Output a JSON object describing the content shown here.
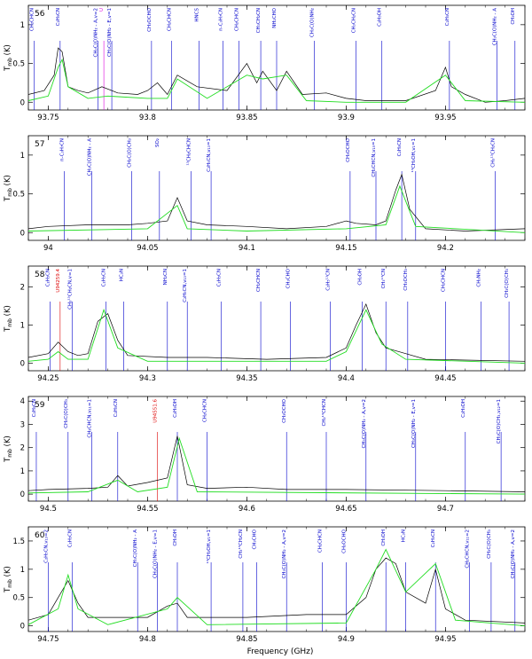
{
  "figure": {
    "xlabel": "Frequency (GHz)",
    "ylabel": "T",
    "ylabel_sub": "mb",
    "ylabel_unit": "(K)"
  },
  "colors": {
    "observed": "#000000",
    "model": "#22dd22",
    "line_label": "#0000cc",
    "unidentified_label": "#dd0000",
    "highlight_label": "#dd00dd"
  },
  "chart_data": [
    {
      "type": "line",
      "panel": "56",
      "xlabel": "Frequency (GHz)",
      "ylabel": "Tmb (K)",
      "xlim": [
        93.74,
        93.99
      ],
      "ylim": [
        -0.1,
        1.25
      ],
      "xticks": [
        93.75,
        93.8,
        93.85,
        93.9,
        93.95
      ],
      "yticks": [
        0,
        0.5,
        1
      ],
      "series": [
        {
          "style": "observed",
          "x": [
            93.74,
            93.748,
            93.753,
            93.755,
            93.757,
            93.76,
            93.765,
            93.77,
            93.777,
            93.785,
            93.795,
            93.8,
            93.805,
            93.81,
            93.815,
            93.825,
            93.84,
            93.85,
            93.855,
            93.858,
            93.865,
            93.87,
            93.878,
            93.89,
            93.9,
            93.91,
            93.93,
            93.945,
            93.95,
            93.953,
            93.96,
            93.97,
            93.98,
            93.99
          ],
          "y": [
            0.1,
            0.15,
            0.35,
            0.7,
            0.65,
            0.2,
            0.15,
            0.12,
            0.2,
            0.12,
            0.1,
            0.15,
            0.25,
            0.1,
            0.35,
            0.2,
            0.15,
            0.5,
            0.25,
            0.4,
            0.15,
            0.4,
            0.1,
            0.12,
            0.05,
            0.02,
            0.02,
            0.15,
            0.45,
            0.2,
            0.1,
            0.0,
            0.02,
            0.05
          ]
        },
        {
          "style": "model",
          "x": [
            93.74,
            93.75,
            93.755,
            93.757,
            93.76,
            93.77,
            93.78,
            93.8,
            93.81,
            93.815,
            93.83,
            93.85,
            93.858,
            93.87,
            93.88,
            93.9,
            93.93,
            93.95,
            93.96,
            93.99
          ],
          "y": [
            0.02,
            0.08,
            0.45,
            0.55,
            0.2,
            0.05,
            0.08,
            0.05,
            0.05,
            0.3,
            0.05,
            0.35,
            0.3,
            0.35,
            0.02,
            0.0,
            0.0,
            0.35,
            0.02,
            0.0
          ]
        }
      ],
      "line_labels": [
        {
          "x": 93.743,
          "text": "CH₂CHCN",
          "color": "blue"
        },
        {
          "x": 93.756,
          "text": "C₂H₅CN",
          "color": "blue"
        },
        {
          "x": 93.775,
          "text": "CH₃C(O)NH₂ - A,v=2",
          "color": "blue"
        },
        {
          "x": 93.778,
          "text": "U",
          "color": "magenta"
        },
        {
          "x": 93.782,
          "text": "CH₃C(O)NH₂ - E,v=1",
          "color": "blue"
        },
        {
          "x": 93.802,
          "text": "CH₃OCHO",
          "color": "blue"
        },
        {
          "x": 93.812,
          "text": "CH₂CHCN",
          "color": "blue"
        },
        {
          "x": 93.826,
          "text": "HNCS",
          "color": "blue"
        },
        {
          "x": 93.838,
          "text": "n-C₃H₇CN",
          "color": "blue"
        },
        {
          "x": 93.846,
          "text": "CH₂CHCN",
          "color": "blue"
        },
        {
          "x": 93.857,
          "text": "CH₃CH₂CN",
          "color": "blue"
        },
        {
          "x": 93.865,
          "text": "NH₂CHO",
          "color": "blue"
        },
        {
          "x": 93.884,
          "text": "CH₃C(O)NH₂",
          "color": "blue"
        },
        {
          "x": 93.905,
          "text": "CH₃CH₂CN",
          "color": "blue"
        },
        {
          "x": 93.918,
          "text": "C₂H₅OH",
          "color": "blue"
        },
        {
          "x": 93.952,
          "text": "C₂H₅CN",
          "color": "blue"
        },
        {
          "x": 93.976,
          "text": "CH₃C(O)NH₂ - A",
          "color": "blue"
        },
        {
          "x": 93.985,
          "text": "CH₃OH",
          "color": "blue"
        }
      ]
    },
    {
      "type": "line",
      "panel": "57",
      "xlabel": "Frequency (GHz)",
      "ylabel": "Tmb (K)",
      "xlim": [
        93.99,
        94.24
      ],
      "ylim": [
        -0.1,
        1.25
      ],
      "xticks": [
        94,
        94.05,
        94.1,
        94.15,
        94.2
      ],
      "yticks": [
        0,
        0.5,
        1
      ],
      "series": [
        {
          "style": "observed",
          "x": [
            93.99,
            94.0,
            94.02,
            94.04,
            94.05,
            94.06,
            94.065,
            94.07,
            94.08,
            94.1,
            94.12,
            94.14,
            94.15,
            94.155,
            94.165,
            94.17,
            94.175,
            94.178,
            94.182,
            94.19,
            94.21,
            94.24
          ],
          "y": [
            0.05,
            0.08,
            0.1,
            0.1,
            0.12,
            0.15,
            0.45,
            0.15,
            0.1,
            0.08,
            0.05,
            0.08,
            0.15,
            0.12,
            0.1,
            0.15,
            0.55,
            0.75,
            0.3,
            0.05,
            0.02,
            0.05
          ]
        },
        {
          "style": "model",
          "x": [
            93.99,
            94.05,
            94.065,
            94.07,
            94.1,
            94.15,
            94.17,
            94.177,
            94.185,
            94.24
          ],
          "y": [
            0.02,
            0.05,
            0.35,
            0.05,
            0.02,
            0.05,
            0.1,
            0.6,
            0.08,
            0.0
          ]
        }
      ],
      "line_labels": [
        {
          "x": 94.008,
          "text": "n-C₃H₇CN",
          "color": "blue"
        },
        {
          "x": 94.022,
          "text": "CH₃C(O)NH₂ - A",
          "color": "blue"
        },
        {
          "x": 94.042,
          "text": "CH₃C(O)CH₃",
          "color": "blue"
        },
        {
          "x": 94.056,
          "text": "SO₂",
          "color": "blue"
        },
        {
          "x": 94.072,
          "text": "¹³CH₂CHCN",
          "color": "blue"
        },
        {
          "x": 94.082,
          "text": "C₂H₅CN,v₁₃=1",
          "color": "blue"
        },
        {
          "x": 94.152,
          "text": "CH₃OCHO",
          "color": "blue"
        },
        {
          "x": 94.165,
          "text": "CH₂CHCN,v₁₅=1",
          "color": "blue"
        },
        {
          "x": 94.178,
          "text": "C₂H₅CN",
          "color": "blue"
        },
        {
          "x": 94.185,
          "text": "¹³CH₃OH,v₁=1",
          "color": "blue"
        },
        {
          "x": 94.225,
          "text": "CH₃¹³CH₂CN",
          "color": "blue"
        }
      ]
    },
    {
      "type": "line",
      "panel": "58",
      "xlabel": "Frequency (GHz)",
      "ylabel": "Tmb (K)",
      "xlim": [
        94.24,
        94.49
      ],
      "ylim": [
        -0.2,
        2.55
      ],
      "xticks": [
        94.25,
        94.3,
        94.35,
        94.4,
        94.45
      ],
      "yticks": [
        0,
        1,
        2
      ],
      "series": [
        {
          "style": "observed",
          "x": [
            94.24,
            94.25,
            94.255,
            94.26,
            94.265,
            94.27,
            94.275,
            94.28,
            94.285,
            94.29,
            94.31,
            94.33,
            94.36,
            94.39,
            94.4,
            94.405,
            94.41,
            94.415,
            94.42,
            94.43,
            94.44,
            94.46,
            94.49
          ],
          "y": [
            0.15,
            0.25,
            0.55,
            0.3,
            0.2,
            0.25,
            1.1,
            1.3,
            0.6,
            0.2,
            0.15,
            0.15,
            0.1,
            0.15,
            0.4,
            1.0,
            1.55,
            0.8,
            0.4,
            0.25,
            0.1,
            0.08,
            0.05
          ]
        },
        {
          "style": "model",
          "x": [
            94.24,
            94.25,
            94.255,
            94.26,
            94.27,
            94.278,
            94.285,
            94.3,
            94.39,
            94.4,
            94.41,
            94.418,
            94.43,
            94.49
          ],
          "y": [
            0.05,
            0.1,
            0.3,
            0.1,
            0.1,
            1.4,
            0.4,
            0.05,
            0.05,
            0.3,
            1.4,
            0.5,
            0.1,
            0.0
          ]
        }
      ],
      "line_labels": [
        {
          "x": 94.251,
          "text": "C₂H₅CN",
          "color": "blue"
        },
        {
          "x": 94.256,
          "text": "U94259.4",
          "color": "red"
        },
        {
          "x": 94.262,
          "text": "CH₃¹³CH₂CN,v=1",
          "color": "blue"
        },
        {
          "x": 94.279,
          "text": "C₂H₅CN",
          "color": "blue"
        },
        {
          "x": 94.288,
          "text": "HC₃N",
          "color": "blue"
        },
        {
          "x": 94.31,
          "text": "NH₂CN",
          "color": "blue"
        },
        {
          "x": 94.32,
          "text": "C₂H₅CN,v₁₃=1",
          "color": "blue"
        },
        {
          "x": 94.337,
          "text": "C₂H₅CN",
          "color": "blue"
        },
        {
          "x": 94.357,
          "text": "CH₂CHCN",
          "color": "blue"
        },
        {
          "x": 94.372,
          "text": "CH₃CHO",
          "color": "blue"
        },
        {
          "x": 94.392,
          "text": "C₂H₅¹³CN",
          "color": "blue"
        },
        {
          "x": 94.408,
          "text": "CH₃OH",
          "color": "blue"
        },
        {
          "x": 94.42,
          "text": "CH₃¹³CN",
          "color": "blue"
        },
        {
          "x": 94.431,
          "text": "CH₃OCH₃",
          "color": "blue"
        },
        {
          "x": 94.45,
          "text": "CH₂CHCN",
          "color": "blue"
        },
        {
          "x": 94.468,
          "text": "CH₃NH₂",
          "color": "blue"
        },
        {
          "x": 94.482,
          "text": "CH₃C(O)CH₃",
          "color": "blue"
        }
      ]
    },
    {
      "type": "line",
      "panel": "59",
      "xlabel": "Frequency (GHz)",
      "ylabel": "Tmb (K)",
      "xlim": [
        94.49,
        94.74
      ],
      "ylim": [
        -0.3,
        4.2
      ],
      "xticks": [
        94.5,
        94.55,
        94.6,
        94.65,
        94.7
      ],
      "yticks": [
        0,
        1,
        2,
        3,
        4
      ],
      "series": [
        {
          "style": "observed",
          "x": [
            94.49,
            94.5,
            94.52,
            94.53,
            94.535,
            94.54,
            94.55,
            94.56,
            94.565,
            94.57,
            94.58,
            94.6,
            94.62,
            94.65,
            94.7,
            94.74
          ],
          "y": [
            0.15,
            0.2,
            0.25,
            0.3,
            0.8,
            0.35,
            0.5,
            0.7,
            2.5,
            0.4,
            0.25,
            0.3,
            0.2,
            0.2,
            0.15,
            0.1
          ]
        },
        {
          "style": "model",
          "x": [
            94.49,
            94.52,
            94.535,
            94.545,
            94.56,
            94.566,
            94.575,
            94.74
          ],
          "y": [
            0.05,
            0.1,
            0.6,
            0.1,
            0.3,
            2.4,
            0.1,
            0.0
          ]
        }
      ],
      "line_labels": [
        {
          "x": 94.494,
          "text": "C₂H₅CN",
          "color": "blue"
        },
        {
          "x": 94.51,
          "text": "CH₃C(O)CH₃",
          "color": "blue"
        },
        {
          "x": 94.522,
          "text": "CH₂CHCN,v₁₁=1",
          "color": "blue"
        },
        {
          "x": 94.535,
          "text": "C₂H₅CN",
          "color": "blue"
        },
        {
          "x": 94.555,
          "text": "U94551.6",
          "color": "red"
        },
        {
          "x": 94.565,
          "text": "C₂H₅OH",
          "color": "blue"
        },
        {
          "x": 94.58,
          "text": "CH₂CHCN",
          "color": "blue"
        },
        {
          "x": 94.62,
          "text": "CH₃OCHO",
          "color": "blue"
        },
        {
          "x": 94.64,
          "text": "CH₂¹³CHCN",
          "color": "blue"
        },
        {
          "x": 94.66,
          "text": "CH₃C(O)NH₂ - A,v=2",
          "color": "blue"
        },
        {
          "x": 94.685,
          "text": "CH₃C(O)NH₂ - E,v=1",
          "color": "blue"
        },
        {
          "x": 94.71,
          "text": "C₂H₅OH",
          "color": "blue"
        },
        {
          "x": 94.728,
          "text": "CH₃C(O)CH₃,v₁₂=1",
          "color": "blue"
        }
      ]
    },
    {
      "type": "line",
      "panel": "60",
      "xlabel": "Frequency (GHz)",
      "ylabel": "Tmb (K)",
      "xlim": [
        94.74,
        94.99
      ],
      "ylim": [
        -0.1,
        1.75
      ],
      "xticks": [
        94.75,
        94.8,
        94.85,
        94.9,
        94.95
      ],
      "yticks": [
        0,
        0.5,
        1,
        1.5
      ],
      "series": [
        {
          "style": "observed",
          "x": [
            94.74,
            94.75,
            94.755,
            94.76,
            94.765,
            94.77,
            94.8,
            94.81,
            94.815,
            94.82,
            94.85,
            94.88,
            94.9,
            94.91,
            94.915,
            94.92,
            94.925,
            94.93,
            94.94,
            94.945,
            94.95,
            94.96,
            94.99
          ],
          "y": [
            0.1,
            0.2,
            0.5,
            0.8,
            0.4,
            0.15,
            0.15,
            0.35,
            0.4,
            0.15,
            0.15,
            0.2,
            0.2,
            0.5,
            1.0,
            1.2,
            1.1,
            0.6,
            0.4,
            1.0,
            0.3,
            0.1,
            0.05
          ]
        },
        {
          "style": "model",
          "x": [
            94.74,
            94.755,
            94.76,
            94.765,
            94.78,
            94.81,
            94.815,
            94.83,
            94.9,
            94.915,
            94.92,
            94.93,
            94.945,
            94.955,
            94.99
          ],
          "y": [
            0.02,
            0.3,
            0.9,
            0.3,
            0.02,
            0.3,
            0.5,
            0.02,
            0.05,
            1.0,
            1.35,
            0.6,
            1.1,
            0.1,
            0.0
          ]
        }
      ],
      "line_labels": [
        {
          "x": 94.75,
          "text": "C₂H₅CN,v₁₃=2",
          "color": "blue"
        },
        {
          "x": 94.762,
          "text": "C₂H₅CN",
          "color": "blue"
        },
        {
          "x": 94.795,
          "text": "CH₃C(O)NH₂ - A",
          "color": "blue"
        },
        {
          "x": 94.805,
          "text": "CH₃C(O)NH₂ - E,v=1",
          "color": "blue"
        },
        {
          "x": 94.815,
          "text": "CH₃OH",
          "color": "blue"
        },
        {
          "x": 94.832,
          "text": "¹³CH₃OH,v₁=1",
          "color": "blue"
        },
        {
          "x": 94.848,
          "text": "CH₃¹³CH₂CN",
          "color": "blue"
        },
        {
          "x": 94.855,
          "text": "CH₃CHO",
          "color": "blue"
        },
        {
          "x": 94.87,
          "text": "CH₃C(O)NH₂ - A,v=2",
          "color": "blue"
        },
        {
          "x": 94.888,
          "text": "CH₂CHCN",
          "color": "blue"
        },
        {
          "x": 94.9,
          "text": "CH₃OCHO",
          "color": "blue"
        },
        {
          "x": 94.92,
          "text": "CH₃OH",
          "color": "blue"
        },
        {
          "x": 94.93,
          "text": "HC₃N",
          "color": "blue"
        },
        {
          "x": 94.945,
          "text": "C₂H₅CN",
          "color": "blue"
        },
        {
          "x": 94.962,
          "text": "CH₂CHCN,v₁₁=2",
          "color": "blue"
        },
        {
          "x": 94.973,
          "text": "CH₃C(O)CH₃",
          "color": "blue"
        },
        {
          "x": 94.985,
          "text": "CH₃C(O)NH₂ - A,v=2",
          "color": "blue"
        }
      ]
    }
  ]
}
